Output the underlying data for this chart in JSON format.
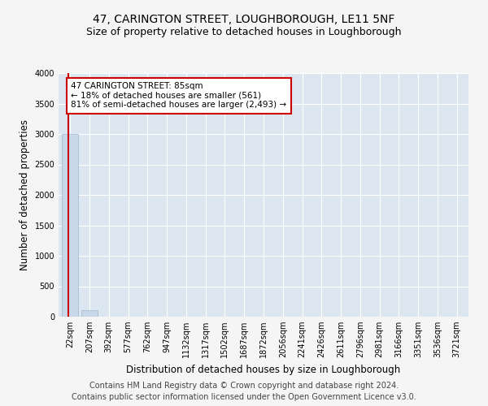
{
  "title": "47, CARINGTON STREET, LOUGHBOROUGH, LE11 5NF",
  "subtitle": "Size of property relative to detached houses in Loughborough",
  "xlabel": "Distribution of detached houses by size in Loughborough",
  "ylabel": "Number of detached properties",
  "footer_line1": "Contains HM Land Registry data © Crown copyright and database right 2024.",
  "footer_line2": "Contains public sector information licensed under the Open Government Licence v3.0.",
  "categories": [
    "22sqm",
    "207sqm",
    "392sqm",
    "577sqm",
    "762sqm",
    "947sqm",
    "1132sqm",
    "1317sqm",
    "1502sqm",
    "1687sqm",
    "1872sqm",
    "2056sqm",
    "2241sqm",
    "2426sqm",
    "2611sqm",
    "2796sqm",
    "2981sqm",
    "3166sqm",
    "3351sqm",
    "3536sqm",
    "3721sqm"
  ],
  "values": [
    3000,
    110,
    0,
    0,
    0,
    0,
    0,
    0,
    0,
    0,
    0,
    0,
    0,
    0,
    0,
    0,
    0,
    0,
    0,
    0,
    0
  ],
  "bar_color": "#c8d8e8",
  "bar_edge_color": "#a0b8cc",
  "highlight_line_color": "#cc0000",
  "annotation_text": "47 CARINGTON STREET: 85sqm\n← 18% of detached houses are smaller (561)\n81% of semi-detached houses are larger (2,493) →",
  "annotation_box_color": "#ffffff",
  "annotation_box_edge_color": "#cc0000",
  "ylim": [
    0,
    4000
  ],
  "yticks": [
    0,
    500,
    1000,
    1500,
    2000,
    2500,
    3000,
    3500,
    4000
  ],
  "fig_bg_color": "#f5f5f5",
  "plot_bg_color": "#dce6f0",
  "grid_color": "#ffffff",
  "title_fontsize": 10,
  "subtitle_fontsize": 9,
  "tick_fontsize": 7,
  "ylabel_fontsize": 8.5,
  "xlabel_fontsize": 8.5,
  "footer_fontsize": 7,
  "annotation_fontsize": 7.5
}
